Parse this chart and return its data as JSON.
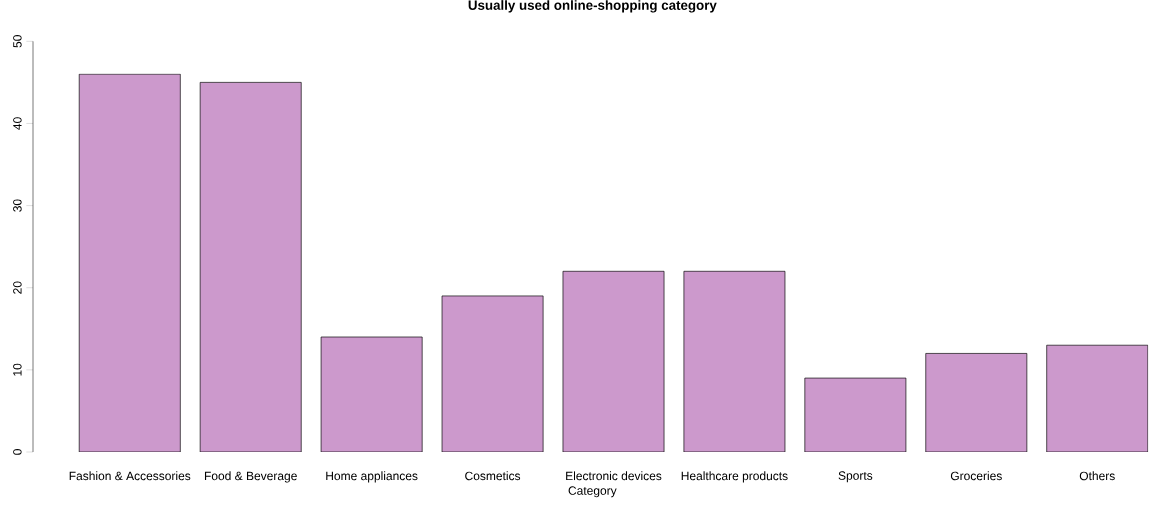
{
  "chart_data": {
    "type": "bar",
    "title": "Usually used online-shopping category",
    "xlabel": "Category",
    "categories": [
      "Fashion & Accessories",
      "Food & Beverage",
      "Home appliances",
      "Cosmetics",
      "Electronic devices",
      "Healthcare products",
      "Sports",
      "Groceries",
      "Others"
    ],
    "values": [
      46,
      45,
      14,
      19,
      22,
      22,
      9,
      12,
      13
    ],
    "color": "#cc99cc",
    "ylim": [
      0,
      50
    ],
    "yticks": [
      0,
      10,
      20,
      30,
      40,
      50
    ]
  }
}
